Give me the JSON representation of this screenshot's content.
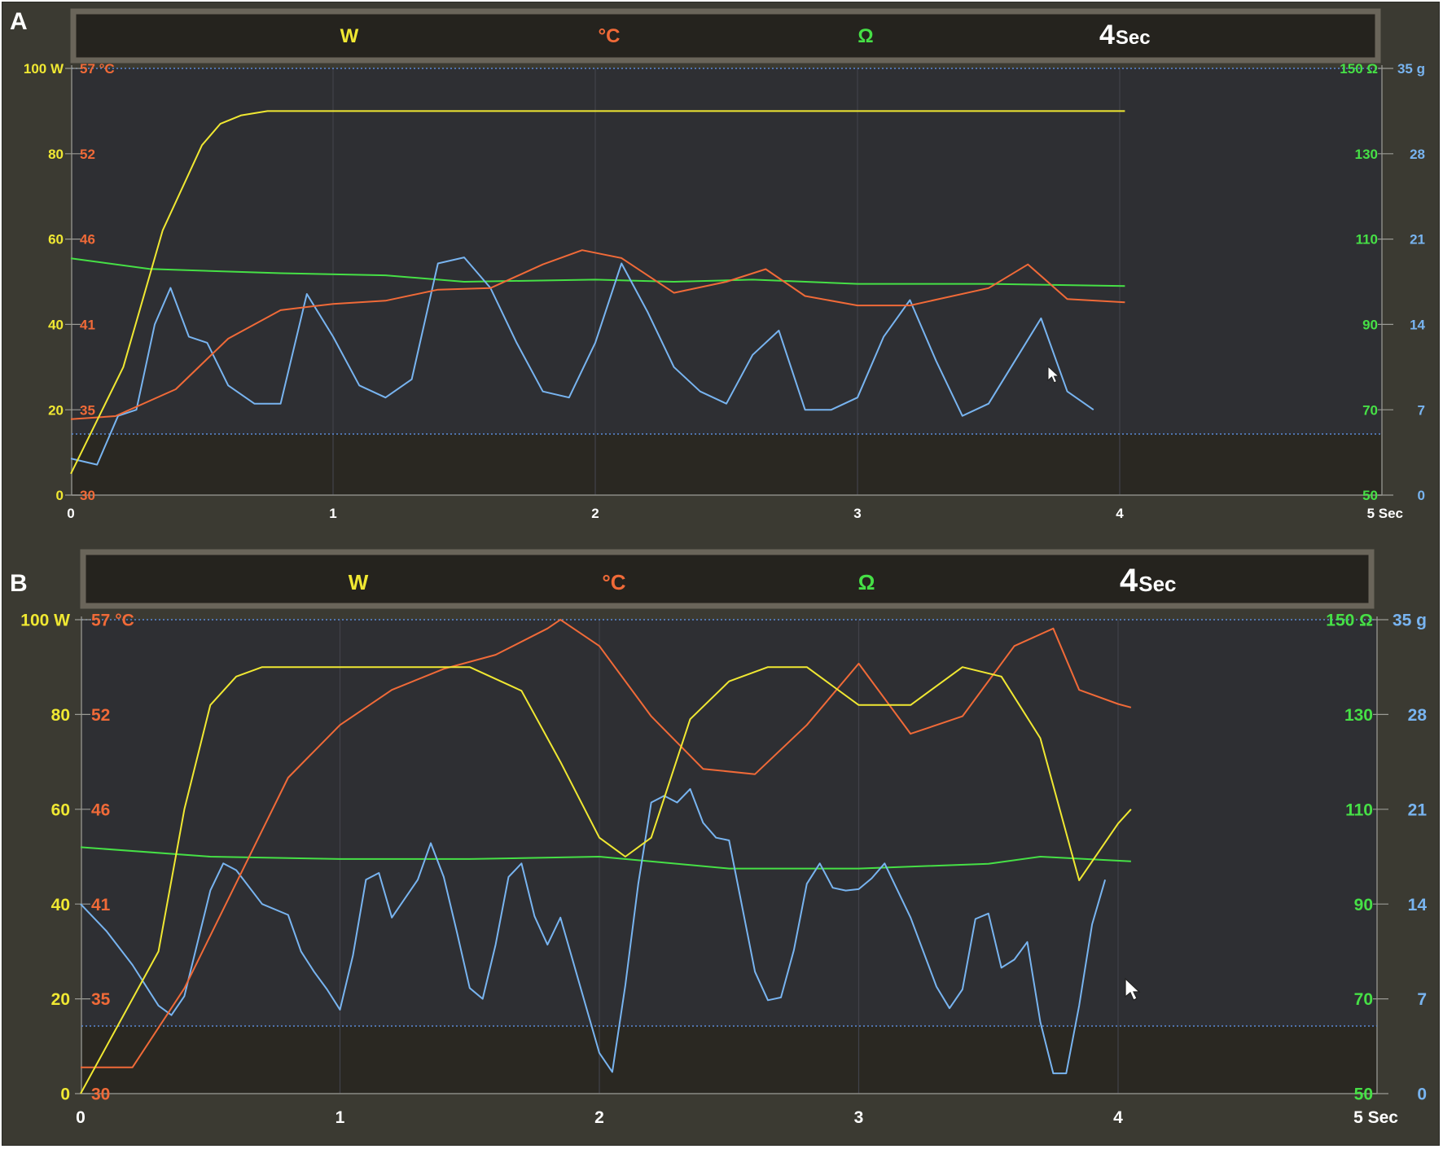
{
  "colors": {
    "watts": "#f0e832",
    "temp": "#f06a38",
    "ohm": "#46e046",
    "grams": "#78b4f0",
    "header_text": "#ffffff",
    "background": "#3b3a32",
    "plot": "#2e2f33",
    "band": "#2a2822",
    "header_bg": "#25231e",
    "header_border": "#6a655a",
    "axis_label": "#ffffff"
  },
  "icons": {
    "cursor": "mouse-pointer-icon"
  },
  "chart_data": [
    {
      "type": "line",
      "panel": "A",
      "header": {
        "watts_unit": "W",
        "temp_unit": "°C",
        "ohm_unit": "Ω",
        "time_value": "4",
        "time_unit": "Sec"
      },
      "x_ticks": [
        "0",
        "1",
        "2",
        "3",
        "4",
        "5 Sec"
      ],
      "xlim": [
        0,
        5
      ],
      "y_axes": {
        "watts": {
          "ticks": [
            "100 W",
            "80",
            "60",
            "40",
            "20",
            "0"
          ],
          "range": [
            0,
            100
          ]
        },
        "temp": {
          "ticks": [
            "57 °C",
            "52",
            "46",
            "41",
            "35",
            "30"
          ],
          "range": [
            30,
            57
          ]
        },
        "ohm": {
          "ticks": [
            "150 Ω",
            "130",
            "110",
            "90",
            "70",
            "50"
          ],
          "range": [
            50,
            150
          ]
        },
        "grams": {
          "ticks": [
            "35 g",
            "28",
            "21",
            "14",
            "7",
            "0"
          ],
          "range": [
            0,
            35
          ]
        }
      },
      "series": [
        {
          "name": "W",
          "axis": "watts",
          "x": [
            0,
            0.2,
            0.35,
            0.5,
            0.57,
            0.65,
            0.75,
            1,
            2,
            3,
            3.6,
            4.02
          ],
          "y": [
            5,
            30,
            62,
            82,
            87,
            89,
            90,
            90,
            90,
            90,
            90,
            90
          ]
        },
        {
          "name": "°C",
          "axis": "temp",
          "x": [
            0,
            0.17,
            0.4,
            0.6,
            0.8,
            1,
            1.2,
            1.4,
            1.6,
            1.8,
            1.95,
            2.1,
            2.3,
            2.5,
            2.65,
            2.8,
            3,
            3.2,
            3.5,
            3.65,
            3.8,
            4.02
          ],
          "y": [
            34.8,
            35,
            36.7,
            39.9,
            41.7,
            42.1,
            42.3,
            43,
            43.1,
            44.6,
            45.5,
            45,
            42.8,
            43.5,
            44.3,
            42.6,
            42,
            42,
            43.1,
            44.6,
            42.4,
            42.2
          ]
        },
        {
          "name": "Ω",
          "axis": "ohm",
          "x": [
            0,
            0.3,
            0.8,
            1.2,
            1.5,
            2,
            2.3,
            2.6,
            3,
            3.5,
            4.02
          ],
          "y": [
            105.5,
            103,
            102,
            101.5,
            100,
            100.5,
            100,
            100.5,
            99.5,
            99.5,
            99
          ]
        },
        {
          "name": "g",
          "axis": "grams",
          "x": [
            0,
            0.1,
            0.18,
            0.25,
            0.32,
            0.38,
            0.45,
            0.52,
            0.6,
            0.7,
            0.8,
            0.9,
            1,
            1.1,
            1.2,
            1.3,
            1.4,
            1.5,
            1.6,
            1.7,
            1.8,
            1.9,
            2,
            2.1,
            2.2,
            2.3,
            2.4,
            2.5,
            2.6,
            2.7,
            2.8,
            2.9,
            3,
            3.1,
            3.2,
            3.3,
            3.4,
            3.5,
            3.6,
            3.7,
            3.8,
            3.9
          ],
          "y": [
            3,
            2.5,
            6.5,
            7,
            14,
            17,
            13,
            12.5,
            9,
            7.5,
            7.5,
            16.5,
            13,
            9,
            8,
            9.5,
            19,
            19.5,
            17,
            12.5,
            8.5,
            8,
            12.5,
            19,
            15,
            10.5,
            8.5,
            7.5,
            11.5,
            13.5,
            7,
            7,
            8,
            13,
            16,
            11,
            6.5,
            7.5,
            11,
            14.5,
            8.5,
            7
          ]
        }
      ]
    },
    {
      "type": "line",
      "panel": "B",
      "header": {
        "watts_unit": "W",
        "temp_unit": "°C",
        "ohm_unit": "Ω",
        "time_value": "4",
        "time_unit": "Sec"
      },
      "x_ticks": [
        "0",
        "1",
        "2",
        "3",
        "4",
        "5 Sec"
      ],
      "xlim": [
        0,
        5
      ],
      "y_axes": {
        "watts": {
          "ticks": [
            "100 W",
            "80",
            "60",
            "40",
            "20",
            "0"
          ],
          "range": [
            0,
            100
          ]
        },
        "temp": {
          "ticks": [
            "57 °C",
            "52",
            "46",
            "41",
            "35",
            "30"
          ],
          "range": [
            30,
            57
          ]
        },
        "ohm": {
          "ticks": [
            "150 Ω",
            "130",
            "110",
            "90",
            "70",
            "50"
          ],
          "range": [
            50,
            150
          ]
        },
        "grams": {
          "ticks": [
            "35 g",
            "28",
            "21",
            "14",
            "7",
            "0"
          ],
          "range": [
            0,
            35
          ]
        }
      },
      "series": [
        {
          "name": "W",
          "axis": "watts",
          "x": [
            0,
            0.1,
            0.3,
            0.4,
            0.5,
            0.6,
            0.7,
            1,
            1.5,
            1.7,
            1.85,
            2,
            2.1,
            2.2,
            2.35,
            2.5,
            2.65,
            2.8,
            2.9,
            3,
            3.2,
            3.4,
            3.55,
            3.7,
            3.85,
            4,
            4.05
          ],
          "y": [
            0,
            10,
            30,
            60,
            82,
            88,
            90,
            90,
            90,
            85,
            70,
            54,
            50,
            54,
            79,
            87,
            90,
            90,
            86,
            82,
            82,
            90,
            88,
            75,
            45,
            57,
            60
          ]
        },
        {
          "name": "°C",
          "axis": "temp",
          "x": [
            0,
            0.2,
            0.4,
            0.6,
            0.8,
            1,
            1.2,
            1.4,
            1.6,
            1.8,
            1.85,
            2,
            2.2,
            2.4,
            2.6,
            2.8,
            3,
            3.2,
            3.4,
            3.6,
            3.75,
            3.85,
            4,
            4.05
          ],
          "y": [
            31.5,
            31.5,
            36,
            42,
            48,
            51,
            53,
            54.2,
            55,
            56.5,
            57,
            55.5,
            51.5,
            48.5,
            48.2,
            51,
            54.5,
            50.5,
            51.5,
            55.5,
            56.5,
            53,
            52.2,
            52
          ]
        },
        {
          "name": "Ω",
          "axis": "ohm",
          "x": [
            0,
            0.5,
            1,
            1.5,
            2,
            2.5,
            3,
            3.5,
            3.7,
            4.05
          ],
          "y": [
            102,
            100,
            99.5,
            99.5,
            100,
            97.5,
            97.5,
            98.5,
            100,
            99
          ]
        },
        {
          "name": "g",
          "axis": "grams",
          "x": [
            0,
            0.1,
            0.2,
            0.3,
            0.35,
            0.4,
            0.5,
            0.55,
            0.6,
            0.7,
            0.8,
            0.85,
            0.9,
            0.95,
            1,
            1.05,
            1.1,
            1.15,
            1.2,
            1.3,
            1.35,
            1.4,
            1.45,
            1.5,
            1.55,
            1.6,
            1.65,
            1.7,
            1.75,
            1.8,
            1.85,
            2,
            2.05,
            2.1,
            2.15,
            2.2,
            2.25,
            2.3,
            2.35,
            2.4,
            2.45,
            2.5,
            2.6,
            2.65,
            2.7,
            2.75,
            2.8,
            2.85,
            2.9,
            2.95,
            3,
            3.05,
            3.1,
            3.2,
            3.3,
            3.35,
            3.4,
            3.45,
            3.5,
            3.55,
            3.6,
            3.65,
            3.7,
            3.75,
            3.8,
            3.85,
            3.9,
            3.95
          ],
          "y": [
            14,
            12,
            9.5,
            6.5,
            5.8,
            7.2,
            15,
            17,
            16.5,
            14,
            13.2,
            10.5,
            9,
            7.7,
            6.2,
            10.2,
            15.8,
            16.3,
            13,
            15.8,
            18.5,
            16,
            12,
            7.8,
            7,
            11,
            16,
            17,
            13.1,
            11,
            13,
            3,
            1.6,
            8,
            15.5,
            21.5,
            22,
            21.5,
            22.5,
            20,
            18.9,
            18.7,
            9,
            6.9,
            7.1,
            10.6,
            15.5,
            17,
            15.2,
            15,
            15.1,
            15.9,
            17,
            13,
            7.9,
            6.3,
            7.7,
            12.9,
            13.3,
            9.3,
            9.9,
            11.2,
            5.3,
            1.5,
            1.5,
            6.5,
            12.5,
            15.8
          ]
        }
      ]
    }
  ]
}
